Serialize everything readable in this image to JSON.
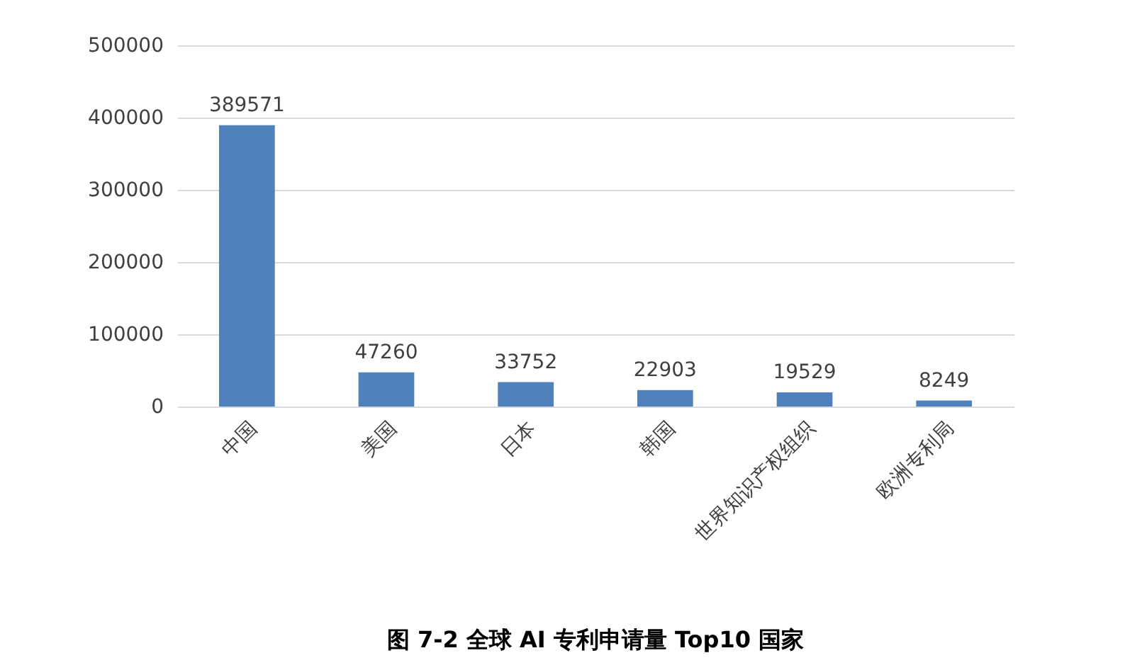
{
  "chart_data": {
    "type": "bar",
    "title": "图 7-2 全球 AI 专利申请量 Top10 国家",
    "categories": [
      "中国",
      "美国",
      "日本",
      "韩国",
      "世界知识产权组织",
      "欧洲专利局"
    ],
    "values": [
      389571,
      47260,
      33752,
      22903,
      19529,
      8249
    ],
    "color": "#4f81bd",
    "ylim": [
      0,
      500000
    ],
    "yticks": [
      0,
      100000,
      200000,
      300000,
      400000,
      500000
    ],
    "grid": "y",
    "data_labels": true
  }
}
